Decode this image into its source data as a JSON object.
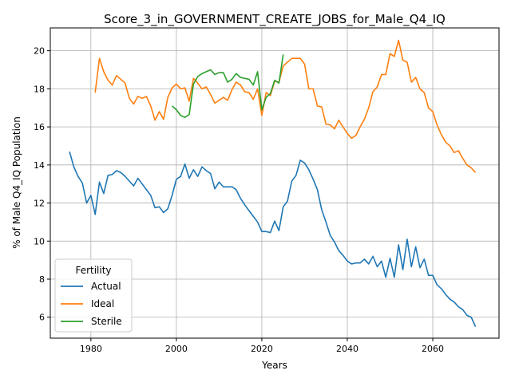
{
  "chart_data": {
    "type": "line",
    "title": "Score_3_in_GOVERNMENT_CREATE_JOBS_for_Male_Q4_IQ",
    "xlabel": "Years",
    "ylabel": "% of Male Q4_IQ Population",
    "xlim": [
      1970.5,
      2075.5
    ],
    "ylim": [
      4.9,
      21.2
    ],
    "xticks": [
      1980,
      2000,
      2020,
      2040,
      2060
    ],
    "yticks": [
      6,
      8,
      10,
      12,
      14,
      16,
      18,
      20
    ],
    "grid": true,
    "legend": {
      "title": "Fertility",
      "position": "lower-left"
    },
    "series": [
      {
        "name": "Actual",
        "color": "#1f77b4",
        "points": [
          [
            1975,
            14.7
          ],
          [
            1976,
            13.9
          ],
          [
            1977,
            13.4
          ],
          [
            1978,
            13.05
          ],
          [
            1979,
            12.0
          ],
          [
            1980,
            12.4
          ],
          [
            1981,
            11.4
          ],
          [
            1982,
            13.1
          ],
          [
            1983,
            12.5
          ],
          [
            1984,
            13.45
          ],
          [
            1985,
            13.5
          ],
          [
            1986,
            13.7
          ],
          [
            1987,
            13.6
          ],
          [
            1988,
            13.4
          ],
          [
            1989,
            13.15
          ],
          [
            1990,
            12.9
          ],
          [
            1991,
            13.3
          ],
          [
            1992,
            13.0
          ],
          [
            1993,
            12.7
          ],
          [
            1994,
            12.4
          ],
          [
            1995,
            11.75
          ],
          [
            1996,
            11.8
          ],
          [
            1997,
            11.5
          ],
          [
            1998,
            11.7
          ],
          [
            1999,
            12.4
          ],
          [
            2000,
            13.25
          ],
          [
            2001,
            13.4
          ],
          [
            2002,
            14.05
          ],
          [
            2003,
            13.3
          ],
          [
            2004,
            13.75
          ],
          [
            2005,
            13.4
          ],
          [
            2006,
            13.9
          ],
          [
            2007,
            13.7
          ],
          [
            2008,
            13.55
          ],
          [
            2009,
            12.75
          ],
          [
            2010,
            13.1
          ],
          [
            2011,
            12.85
          ],
          [
            2012,
            12.85
          ],
          [
            2013,
            12.85
          ],
          [
            2014,
            12.7
          ],
          [
            2015,
            12.25
          ],
          [
            2016,
            11.9
          ],
          [
            2017,
            11.6
          ],
          [
            2018,
            11.3
          ],
          [
            2019,
            11.0
          ],
          [
            2020,
            10.5
          ],
          [
            2021,
            10.5
          ],
          [
            2022,
            10.45
          ],
          [
            2023,
            11.05
          ],
          [
            2024,
            10.55
          ],
          [
            2025,
            11.8
          ],
          [
            2026,
            12.1
          ],
          [
            2027,
            13.15
          ],
          [
            2028,
            13.45
          ],
          [
            2029,
            14.25
          ],
          [
            2030,
            14.1
          ],
          [
            2031,
            13.75
          ],
          [
            2032,
            13.25
          ],
          [
            2033,
            12.7
          ],
          [
            2034,
            11.65
          ],
          [
            2035,
            11.0
          ],
          [
            2036,
            10.3
          ],
          [
            2037,
            9.95
          ],
          [
            2038,
            9.5
          ],
          [
            2039,
            9.25
          ],
          [
            2040,
            8.95
          ],
          [
            2041,
            8.8
          ],
          [
            2042,
            8.85
          ],
          [
            2043,
            8.85
          ],
          [
            2044,
            9.05
          ],
          [
            2045,
            8.8
          ],
          [
            2046,
            9.2
          ],
          [
            2047,
            8.65
          ],
          [
            2048,
            8.95
          ],
          [
            2049,
            8.1
          ],
          [
            2050,
            9.1
          ],
          [
            2051,
            8.1
          ],
          [
            2052,
            9.8
          ],
          [
            2053,
            8.5
          ],
          [
            2054,
            10.1
          ],
          [
            2055,
            8.65
          ],
          [
            2056,
            9.7
          ],
          [
            2057,
            8.6
          ],
          [
            2058,
            9.05
          ],
          [
            2059,
            8.2
          ],
          [
            2060,
            8.2
          ],
          [
            2061,
            7.7
          ],
          [
            2062,
            7.5
          ],
          [
            2063,
            7.2
          ],
          [
            2064,
            6.95
          ],
          [
            2065,
            6.8
          ],
          [
            2066,
            6.55
          ],
          [
            2067,
            6.4
          ],
          [
            2068,
            6.1
          ],
          [
            2069,
            6.0
          ],
          [
            2070,
            5.5
          ]
        ]
      },
      {
        "name": "Ideal",
        "color": "#ff7f0e",
        "points": [
          [
            1981,
            17.8
          ],
          [
            1982,
            19.6
          ],
          [
            1983,
            18.9
          ],
          [
            1984,
            18.45
          ],
          [
            1985,
            18.2
          ],
          [
            1986,
            18.7
          ],
          [
            1987,
            18.5
          ],
          [
            1988,
            18.3
          ],
          [
            1989,
            17.5
          ],
          [
            1990,
            17.2
          ],
          [
            1991,
            17.6
          ],
          [
            1992,
            17.5
          ],
          [
            1993,
            17.6
          ],
          [
            1994,
            17.1
          ],
          [
            1995,
            16.35
          ],
          [
            1996,
            16.8
          ],
          [
            1997,
            16.4
          ],
          [
            1998,
            17.55
          ],
          [
            1999,
            18.05
          ],
          [
            2000,
            18.25
          ],
          [
            2001,
            18.0
          ],
          [
            2002,
            18.05
          ],
          [
            2003,
            17.35
          ],
          [
            2004,
            18.55
          ],
          [
            2005,
            18.3
          ],
          [
            2006,
            18.0
          ],
          [
            2007,
            18.1
          ],
          [
            2008,
            17.7
          ],
          [
            2009,
            17.25
          ],
          [
            2010,
            17.4
          ],
          [
            2011,
            17.55
          ],
          [
            2012,
            17.4
          ],
          [
            2013,
            17.95
          ],
          [
            2014,
            18.35
          ],
          [
            2015,
            18.2
          ],
          [
            2016,
            17.85
          ],
          [
            2017,
            17.8
          ],
          [
            2018,
            17.45
          ],
          [
            2019,
            18.0
          ],
          [
            2020,
            16.6
          ],
          [
            2021,
            17.8
          ],
          [
            2022,
            17.65
          ],
          [
            2023,
            18.4
          ],
          [
            2024,
            18.35
          ],
          [
            2025,
            19.2
          ],
          [
            2026,
            19.4
          ],
          [
            2027,
            19.6
          ],
          [
            2028,
            19.6
          ],
          [
            2029,
            19.6
          ],
          [
            2030,
            19.3
          ],
          [
            2031,
            18.0
          ],
          [
            2032,
            18.0
          ],
          [
            2033,
            17.1
          ],
          [
            2034,
            17.05
          ],
          [
            2035,
            16.15
          ],
          [
            2036,
            16.1
          ],
          [
            2037,
            15.9
          ],
          [
            2038,
            16.35
          ],
          [
            2039,
            16.0
          ],
          [
            2040,
            15.65
          ],
          [
            2041,
            15.4
          ],
          [
            2042,
            15.55
          ],
          [
            2043,
            16.0
          ],
          [
            2044,
            16.4
          ],
          [
            2045,
            17.0
          ],
          [
            2046,
            17.85
          ],
          [
            2047,
            18.1
          ],
          [
            2048,
            18.75
          ],
          [
            2049,
            18.75
          ],
          [
            2050,
            19.85
          ],
          [
            2051,
            19.7
          ],
          [
            2052,
            20.55
          ],
          [
            2053,
            19.5
          ],
          [
            2054,
            19.4
          ],
          [
            2055,
            18.35
          ],
          [
            2056,
            18.6
          ],
          [
            2057,
            18.0
          ],
          [
            2058,
            17.8
          ],
          [
            2059,
            17.0
          ],
          [
            2060,
            16.8
          ],
          [
            2061,
            16.1
          ],
          [
            2062,
            15.6
          ],
          [
            2063,
            15.2
          ],
          [
            2064,
            15.0
          ],
          [
            2065,
            14.65
          ],
          [
            2066,
            14.75
          ],
          [
            2067,
            14.35
          ],
          [
            2068,
            14.0
          ],
          [
            2069,
            13.85
          ],
          [
            2070,
            13.6
          ]
        ]
      },
      {
        "name": "Sterile",
        "color": "#2ca02c",
        "points": [
          [
            1999,
            17.1
          ],
          [
            2000,
            16.9
          ],
          [
            2001,
            16.6
          ],
          [
            2002,
            16.5
          ],
          [
            2003,
            16.65
          ],
          [
            2004,
            18.25
          ],
          [
            2005,
            18.65
          ],
          [
            2006,
            18.8
          ],
          [
            2007,
            18.9
          ],
          [
            2008,
            19.0
          ],
          [
            2009,
            18.75
          ],
          [
            2010,
            18.85
          ],
          [
            2011,
            18.85
          ],
          [
            2012,
            18.35
          ],
          [
            2013,
            18.5
          ],
          [
            2014,
            18.8
          ],
          [
            2015,
            18.6
          ],
          [
            2016,
            18.55
          ],
          [
            2017,
            18.5
          ],
          [
            2018,
            18.2
          ],
          [
            2019,
            18.9
          ],
          [
            2020,
            16.9
          ],
          [
            2021,
            17.55
          ],
          [
            2022,
            17.75
          ],
          [
            2023,
            18.45
          ],
          [
            2024,
            18.3
          ],
          [
            2025,
            19.8
          ]
        ]
      }
    ]
  }
}
